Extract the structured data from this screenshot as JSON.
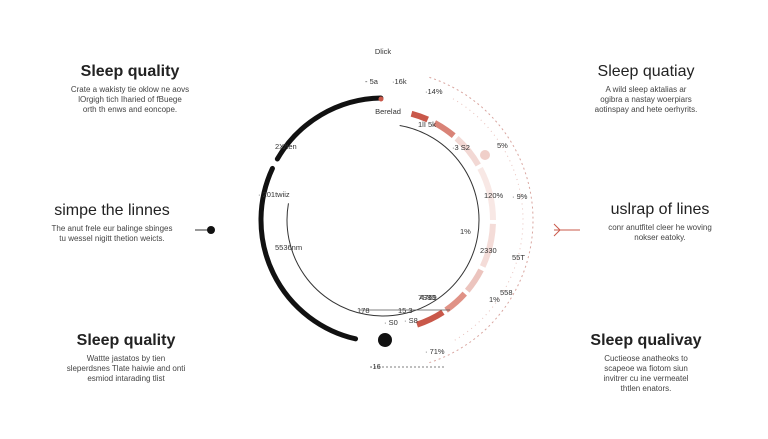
{
  "ring": {
    "top_label": "Dlick",
    "inner_label": "Berelad",
    "labels": [
      "- 5a",
      "·16k",
      "·14%",
      "1lI 5k",
      "2X/ten",
      "·3 S2",
      "5%",
      "· 201twiiz",
      "120%",
      "· 9%",
      "5536nm",
      "1%",
      "2330",
      "55T",
      "4769",
      "558",
      "1%",
      "178",
      "15.3",
      "7S80",
      "· S8",
      "· S0",
      "· 71%",
      "·16"
    ]
  },
  "panels": [
    {
      "title": "Sleep quality",
      "body": [
        "Crate a wakisty tie oklow ne aovs",
        "lOrgigh tich Iharied of fBuege",
        "orth th enws and eoncope."
      ]
    },
    {
      "title": "simpe the linnes",
      "body": [
        "The anut frele eur balinge sbinges",
        "tu wessel nigitt thetion weicts."
      ]
    },
    {
      "title": "Sleep quality",
      "body": [
        "Wattte jastatos by tien",
        "sleperdsnes Tlate haiwie and onti",
        "esmiod intarading tlist"
      ]
    },
    {
      "title": "Sleep quatiay",
      "body": [
        "A wild sleep aktalias ar",
        "ogibra a nastay woerpiars",
        "aotinspay and hete oerhyrits."
      ]
    },
    {
      "title": "uslrap of lines",
      "body": [
        "conr anutfitel cleer he woving",
        "nokser eatoky."
      ]
    },
    {
      "title": "Sleep qualivay",
      "body": [
        "Cuctieose anatheoks to",
        "scapeoe wa fiotom siun",
        "invitrer cu ine vermeatel",
        "thtlen enators."
      ]
    }
  ]
}
